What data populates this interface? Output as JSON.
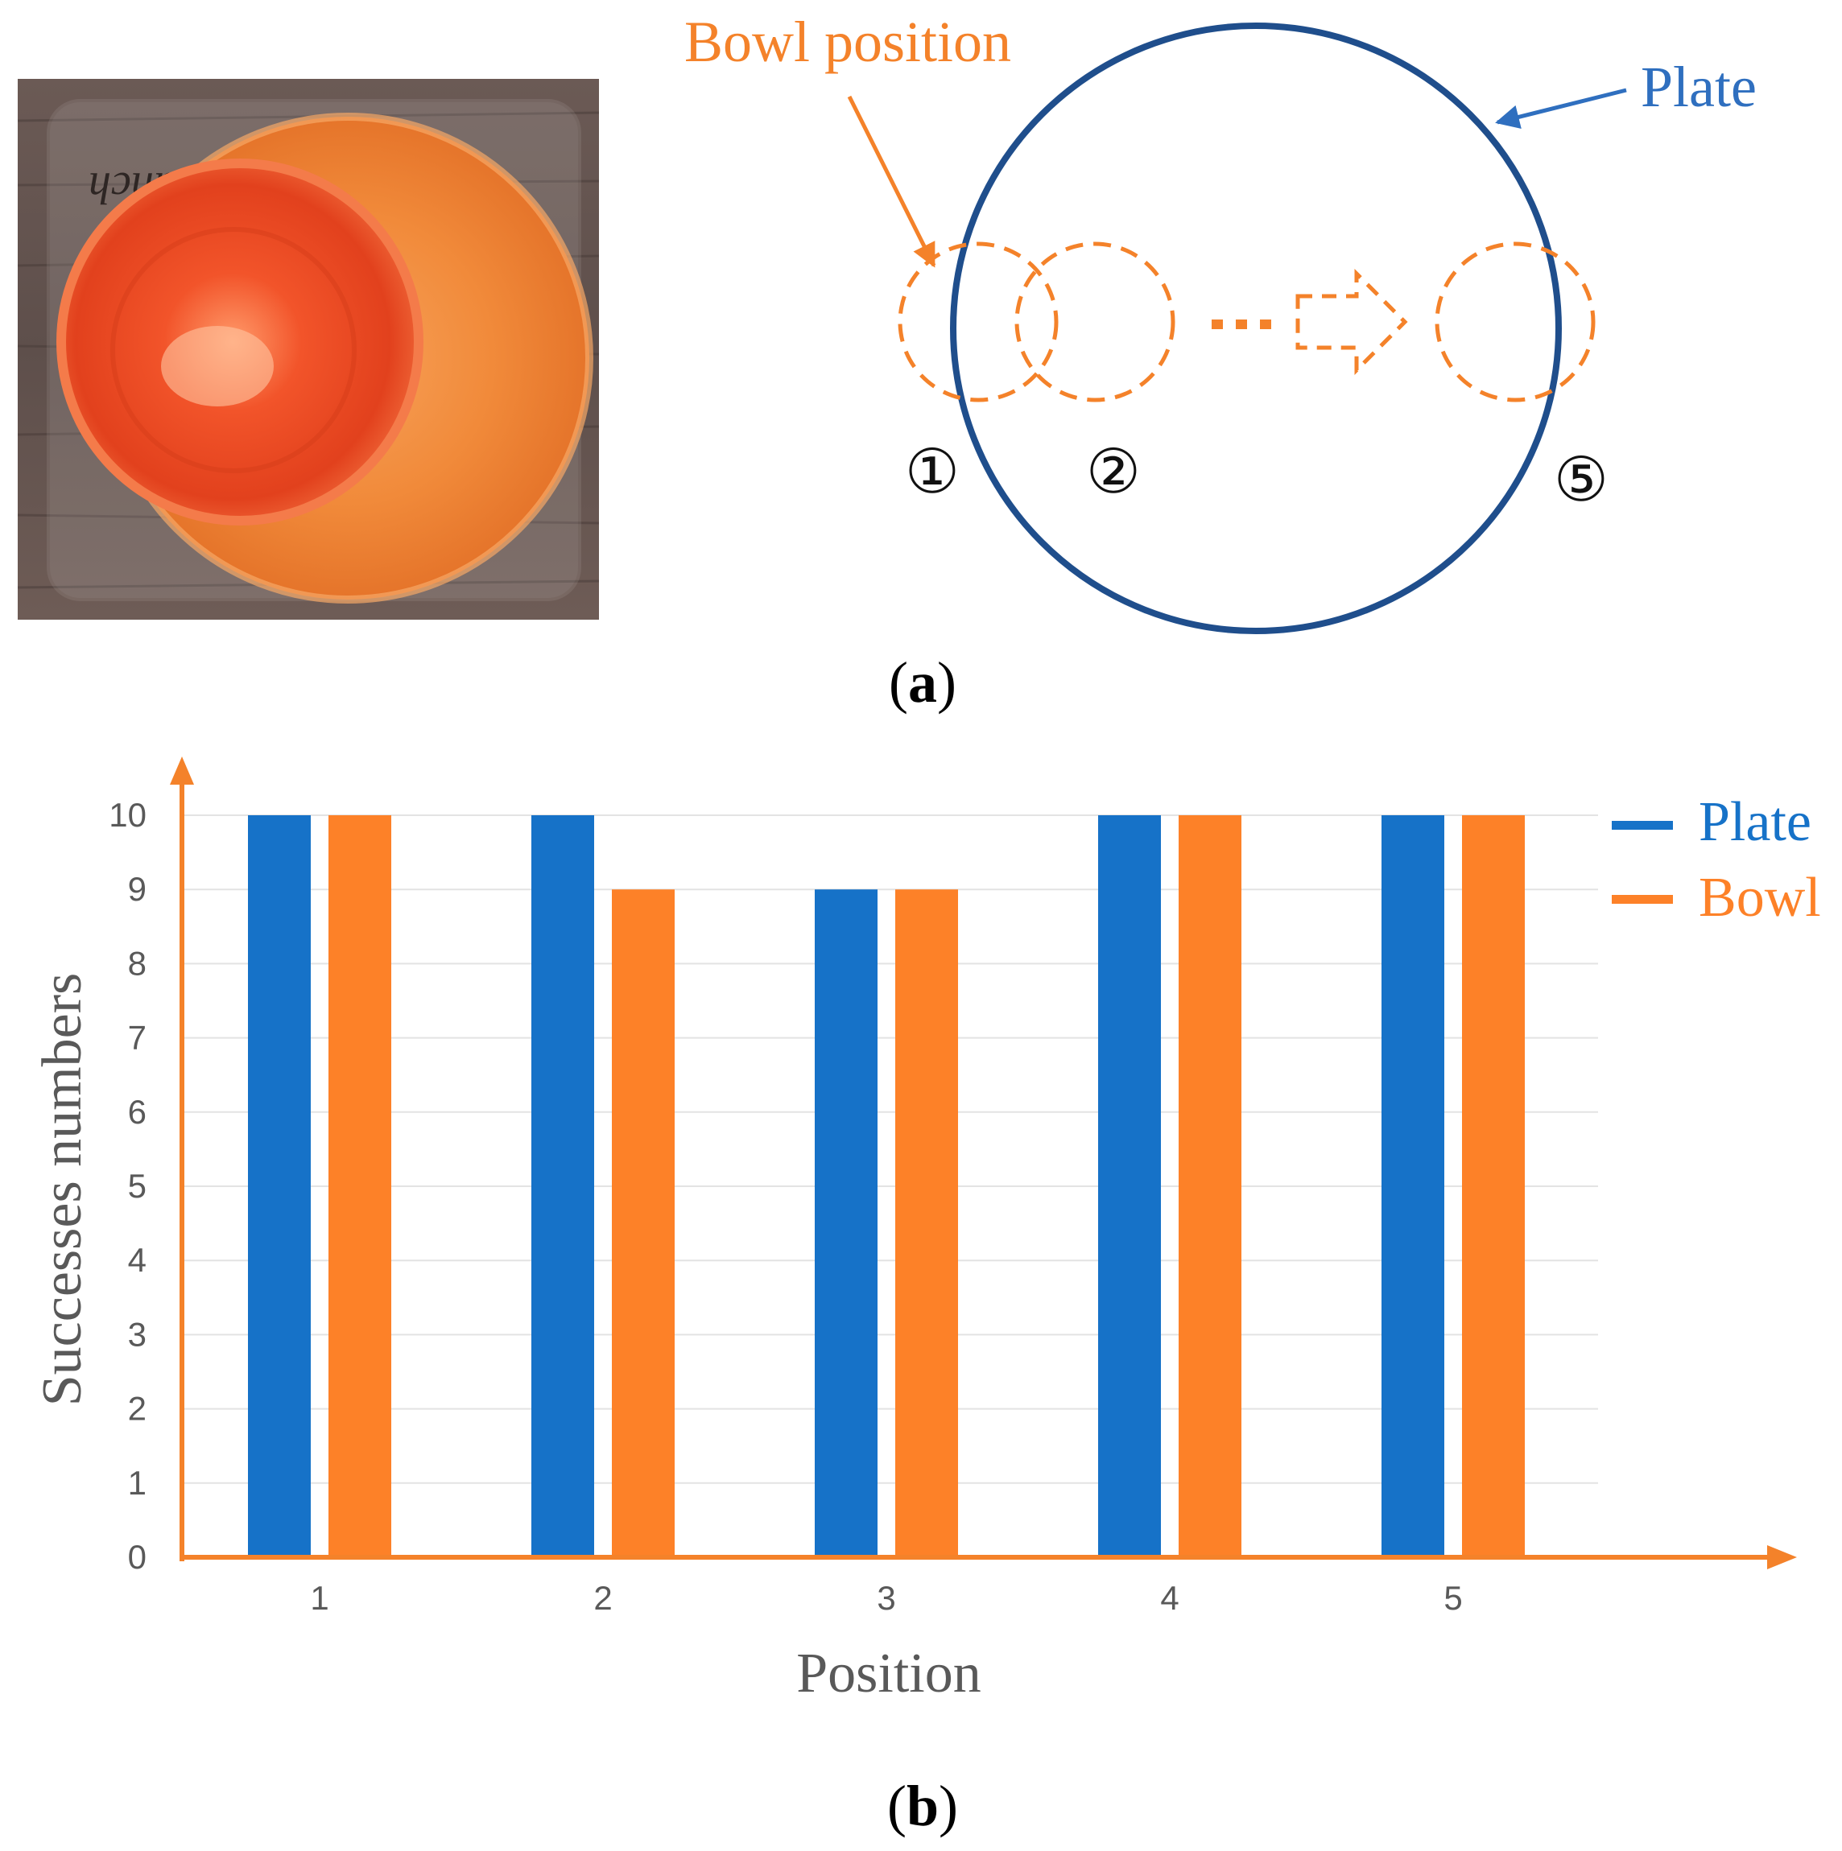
{
  "panel_a": {
    "caption": "(a)",
    "bowl_position_label": "Bowl position",
    "plate_label": "Plate",
    "position_markers": [
      "①",
      "②",
      "⑤"
    ],
    "photo_tray_text": "Lunch",
    "colors": {
      "plate": "#1f4e8c",
      "bowl": "#f4822a",
      "label_blue": "#2f6fbf"
    }
  },
  "panel_b": {
    "caption": "(b)"
  },
  "chart_data": {
    "type": "bar",
    "title": "",
    "xlabel": "Position",
    "ylabel": "Successes numbers",
    "categories": [
      "1",
      "2",
      "3",
      "4",
      "5"
    ],
    "series": [
      {
        "name": "Plate",
        "color": "#1672c8",
        "values": [
          10,
          10,
          9,
          10,
          10
        ]
      },
      {
        "name": "Bowl",
        "color": "#fd8128",
        "values": [
          10,
          9,
          9,
          10,
          10
        ]
      }
    ],
    "ylim": [
      0,
      10
    ],
    "yticks": [
      "0",
      "1",
      "2",
      "3",
      "4",
      "5",
      "6",
      "7",
      "8",
      "9",
      "10"
    ],
    "grid": true,
    "legend": "right",
    "axis_color": "#f4822a"
  }
}
